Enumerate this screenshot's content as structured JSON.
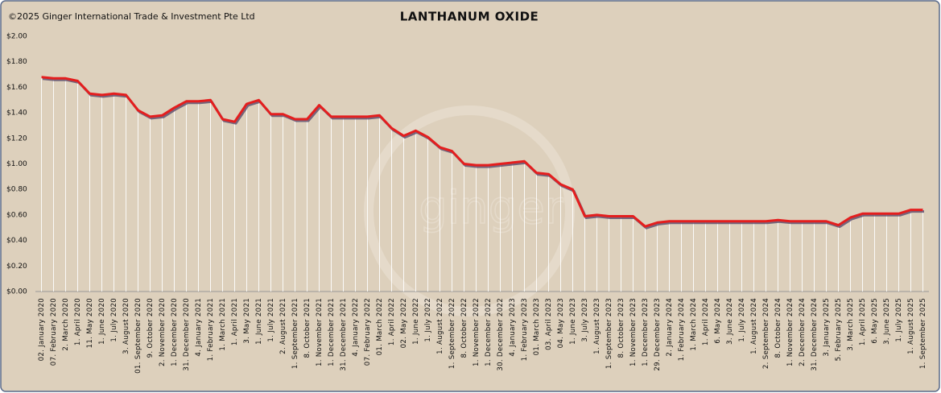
{
  "chart_data": {
    "type": "line",
    "title": "LANTHANUM OXIDE",
    "copyright": "©2025 Ginger International Trade & Investment Pte Ltd",
    "watermark": "ginger",
    "categories": [
      "02. January 2020",
      "07. February 2020",
      "2. March 2020",
      "1. April 2020",
      "11. May 2020",
      "1. June 2020",
      "1. July 2020",
      "3. August 2020",
      "01. September 2020",
      "9. October 2020",
      "2. November 2020",
      "1. December 2020",
      "31. December 2020",
      "4. January 2021",
      "1. February 2021",
      "1. March 2021",
      "1. April 2021",
      "3. May 2021",
      "1. June 2021",
      "1. July 2021",
      "2. August 2021",
      "1. September 2021",
      "8. October 2021",
      "1. November 2021",
      "1. December 2021",
      "31. December 2021",
      "4. January 2022",
      "07. February 2022",
      "01. March 2022",
      "1. April 2022",
      "02. May 2022",
      "1. June 2022",
      "1. July 2022",
      "1. August 2022",
      "1. September 2022",
      "8. October 2022",
      "1. November 2022",
      "1. December 2022",
      "30. December 2022",
      "4. January 2023",
      "1. February 2023",
      "01. March 2023",
      "03. April 2023",
      "04. May 2023",
      "1. June 2023",
      "3. July 2023",
      "1. August 2023",
      "1. September 2023",
      "8. October 2023",
      "1. November 2023",
      "1. December 2023",
      "29. December 2023",
      "2. January 2024",
      "1. February 2024",
      "1. March 2024",
      "1. April 2024",
      "6. May 2024",
      "3. June 2024",
      "1. July 2024",
      "1. August 2024",
      "2. September 2024",
      "8. October 2024",
      "1. November 2024",
      "2. December 2024",
      "31. December 2024",
      "3. January 2025",
      "5. February 2025",
      "3. March 2025",
      "1. April 2025",
      "6. May 2025",
      "3. June 2025",
      "1. July 2025",
      "1. August 2025",
      "1. September 2025"
    ],
    "series": [
      {
        "name": "Lanthanum Oxide",
        "color": "#e41e1e",
        "values": [
          1.68,
          1.67,
          1.67,
          1.65,
          1.55,
          1.54,
          1.55,
          1.54,
          1.42,
          1.37,
          1.38,
          1.44,
          1.49,
          1.49,
          1.5,
          1.35,
          1.33,
          1.47,
          1.5,
          1.39,
          1.39,
          1.35,
          1.35,
          1.46,
          1.37,
          1.37,
          1.37,
          1.37,
          1.38,
          1.28,
          1.22,
          1.26,
          1.21,
          1.13,
          1.1,
          1.0,
          0.99,
          0.99,
          1.0,
          1.01,
          1.02,
          0.93,
          0.92,
          0.84,
          0.8,
          0.59,
          0.6,
          0.59,
          0.59,
          0.59,
          0.51,
          0.54,
          0.55,
          0.55,
          0.55,
          0.55,
          0.55,
          0.55,
          0.55,
          0.55,
          0.55,
          0.56,
          0.55,
          0.55,
          0.55,
          0.55,
          0.52,
          0.58,
          0.61,
          0.61,
          0.61,
          0.61,
          0.64,
          0.64
        ]
      }
    ],
    "ylim": [
      0,
      2
    ],
    "yticks": [
      {
        "value": 0,
        "label": "$0.00"
      },
      {
        "value": 0.2,
        "label": "$0.20"
      },
      {
        "value": 0.4,
        "label": "$0.40"
      },
      {
        "value": 0.6,
        "label": "$0.60"
      },
      {
        "value": 0.8,
        "label": "$0.80"
      },
      {
        "value": 1,
        "label": "$1.00"
      },
      {
        "value": 1.2,
        "label": "$1.20"
      },
      {
        "value": 1.4,
        "label": "$1.40"
      },
      {
        "value": 1.6,
        "label": "$1.60"
      },
      {
        "value": 1.8,
        "label": "$1.80"
      },
      {
        "value": 2,
        "label": "$2.00"
      }
    ],
    "grid": false
  }
}
